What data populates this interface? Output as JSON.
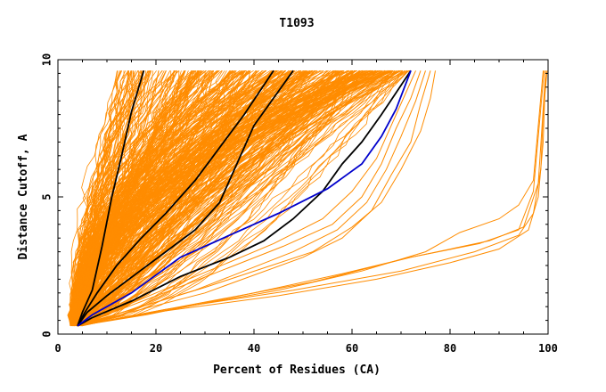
{
  "chart_data": {
    "type": "line",
    "title": "T1093",
    "xlabel": "Percent of Residues (CA)",
    "ylabel": "Distance Cutoff, A",
    "xlim": [
      0,
      100
    ],
    "ylim": [
      0,
      10
    ],
    "x_ticks": [
      0,
      20,
      40,
      60,
      80,
      100
    ],
    "y_ticks": [
      0,
      5,
      10
    ],
    "grid": false,
    "legend": "none",
    "colors": {
      "bundle": "#ff8c00",
      "highlight": "#000000",
      "selected": "#0000cc",
      "axes": "#000000"
    },
    "series": [
      {
        "values": [
          [
            4.0,
            0.3
          ],
          [
            5.0,
            0.8
          ],
          [
            7.0,
            1.6
          ],
          [
            9.0,
            3.2
          ],
          [
            11.0,
            5.0
          ],
          [
            13.0,
            6.5
          ],
          [
            15.0,
            8.1
          ],
          [
            17.5,
            9.6
          ]
        ],
        "color": "highlight"
      },
      {
        "values": [
          [
            4.0,
            0.3
          ],
          [
            5.5,
            0.8
          ],
          [
            8.0,
            1.5
          ],
          [
            12.0,
            2.5
          ],
          [
            17.0,
            3.5
          ],
          [
            22.0,
            4.4
          ],
          [
            28.0,
            5.6
          ],
          [
            33.0,
            6.8
          ],
          [
            38.0,
            8.0
          ],
          [
            44.0,
            9.6
          ]
        ],
        "color": "highlight"
      },
      {
        "values": [
          [
            4.0,
            0.3
          ],
          [
            6.0,
            0.8
          ],
          [
            10.0,
            1.4
          ],
          [
            16.0,
            2.2
          ],
          [
            22.0,
            3.0
          ],
          [
            28.0,
            3.8
          ],
          [
            33.0,
            4.8
          ],
          [
            36.0,
            6.0
          ],
          [
            40.0,
            7.6
          ],
          [
            44.0,
            8.6
          ],
          [
            48.0,
            9.6
          ]
        ],
        "color": "highlight"
      },
      {
        "values": [
          [
            4.0,
            0.3
          ],
          [
            7.0,
            0.6
          ],
          [
            15.0,
            1.2
          ],
          [
            25.0,
            2.1
          ],
          [
            35.0,
            2.8
          ],
          [
            42.0,
            3.4
          ],
          [
            48.0,
            4.2
          ],
          [
            54.0,
            5.2
          ],
          [
            58.0,
            6.2
          ],
          [
            62.0,
            7.0
          ],
          [
            66.0,
            8.0
          ],
          [
            69.0,
            8.8
          ],
          [
            72.0,
            9.6
          ]
        ],
        "color": "highlight"
      },
      {
        "values": [
          [
            4.0,
            0.3
          ],
          [
            7.0,
            0.7
          ],
          [
            15.0,
            1.5
          ],
          [
            25.0,
            2.8
          ],
          [
            35.0,
            3.6
          ],
          [
            45.0,
            4.4
          ],
          [
            55.0,
            5.3
          ],
          [
            62.0,
            6.2
          ],
          [
            66.0,
            7.2
          ],
          [
            69.0,
            8.2
          ],
          [
            72.0,
            9.6
          ]
        ],
        "color": "selected"
      },
      {
        "values": [
          [
            4.0,
            0.3
          ],
          [
            20.0,
            0.8
          ],
          [
            45.0,
            1.4
          ],
          [
            65.0,
            2.0
          ],
          [
            80.0,
            2.6
          ],
          [
            90.0,
            3.1
          ],
          [
            96.0,
            3.8
          ],
          [
            98.0,
            5.0
          ],
          [
            99.0,
            7.0
          ],
          [
            99.5,
            9.6
          ]
        ],
        "color": "bundle"
      },
      {
        "values": [
          [
            4.0,
            0.3
          ],
          [
            22.0,
            0.9
          ],
          [
            48.0,
            1.6
          ],
          [
            70.0,
            2.3
          ],
          [
            85.0,
            3.0
          ],
          [
            94.0,
            3.6
          ],
          [
            97.0,
            4.4
          ],
          [
            98.5,
            6.0
          ],
          [
            99.0,
            8.0
          ],
          [
            99.8,
            9.6
          ]
        ],
        "color": "bundle"
      },
      {
        "values": [
          [
            4.0,
            0.3
          ],
          [
            25.0,
            1.0
          ],
          [
            52.0,
            1.9
          ],
          [
            72.0,
            2.8
          ],
          [
            88.0,
            3.4
          ],
          [
            95.0,
            3.9
          ],
          [
            98.0,
            5.5
          ],
          [
            99.5,
            9.6
          ]
        ],
        "color": "bundle"
      },
      {
        "values": [
          [
            4.0,
            0.3
          ],
          [
            20.0,
            0.8
          ],
          [
            45.0,
            1.6
          ],
          [
            62.0,
            2.3
          ],
          [
            75.0,
            3.0
          ],
          [
            82.0,
            3.7
          ],
          [
            90.0,
            4.2
          ],
          [
            94.0,
            4.7
          ],
          [
            97.0,
            5.6
          ],
          [
            99.0,
            9.6
          ]
        ],
        "color": "bundle"
      },
      {
        "values": [
          [
            4.0,
            0.3
          ],
          [
            18.0,
            0.7
          ],
          [
            40.0,
            1.5
          ],
          [
            58.0,
            2.2
          ],
          [
            72.0,
            2.8
          ],
          [
            86.0,
            3.3
          ],
          [
            94.0,
            3.8
          ],
          [
            97.0,
            5.2
          ],
          [
            99.2,
            9.6
          ]
        ],
        "color": "bundle"
      },
      {
        "values": [
          [
            4.0,
            0.3
          ],
          [
            30.0,
            1.5
          ],
          [
            50.0,
            2.8
          ],
          [
            58.0,
            3.5
          ],
          [
            64.0,
            4.5
          ],
          [
            68.0,
            5.8
          ],
          [
            72.0,
            7.0
          ],
          [
            74.0,
            8.4
          ],
          [
            76.0,
            9.6
          ]
        ],
        "color": "bundle"
      },
      {
        "values": [
          [
            4.0,
            0.3
          ],
          [
            28.0,
            1.6
          ],
          [
            48.0,
            3.0
          ],
          [
            57.0,
            3.8
          ],
          [
            63.0,
            4.8
          ],
          [
            67.0,
            6.0
          ],
          [
            70.0,
            7.2
          ],
          [
            73.0,
            8.5
          ],
          [
            75.0,
            9.6
          ]
        ],
        "color": "bundle"
      },
      {
        "values": [
          [
            4.0,
            0.3
          ],
          [
            26.0,
            1.8
          ],
          [
            46.0,
            3.2
          ],
          [
            56.0,
            4.0
          ],
          [
            62.0,
            5.0
          ],
          [
            66.0,
            6.2
          ],
          [
            69.0,
            7.5
          ],
          [
            72.0,
            8.6
          ],
          [
            74.0,
            9.6
          ]
        ],
        "color": "bundle"
      },
      {
        "values": [
          [
            4.0,
            0.3
          ],
          [
            30.0,
            1.7
          ],
          [
            52.0,
            3.0
          ],
          [
            60.0,
            3.9
          ],
          [
            66.0,
            4.8
          ],
          [
            70.0,
            6.0
          ],
          [
            74.0,
            7.4
          ],
          [
            76.0,
            8.6
          ],
          [
            77.0,
            9.6
          ]
        ],
        "color": "bundle"
      },
      {
        "values": [
          [
            4.0,
            0.3
          ],
          [
            24.0,
            1.8
          ],
          [
            44.0,
            3.3
          ],
          [
            54.0,
            4.2
          ],
          [
            60.0,
            5.2
          ],
          [
            65.0,
            6.4
          ],
          [
            68.0,
            7.6
          ],
          [
            71.0,
            8.8
          ],
          [
            73.0,
            9.6
          ]
        ],
        "color": "bundle"
      }
    ],
    "bundle_envelope": {
      "count": 400,
      "start_x": [
        2.5,
        5.0
      ],
      "start_y": 0.3,
      "end_y": 9.6,
      "end_x": [
        12,
        72
      ],
      "shape_exponent": [
        0.55,
        2.4
      ]
    }
  }
}
